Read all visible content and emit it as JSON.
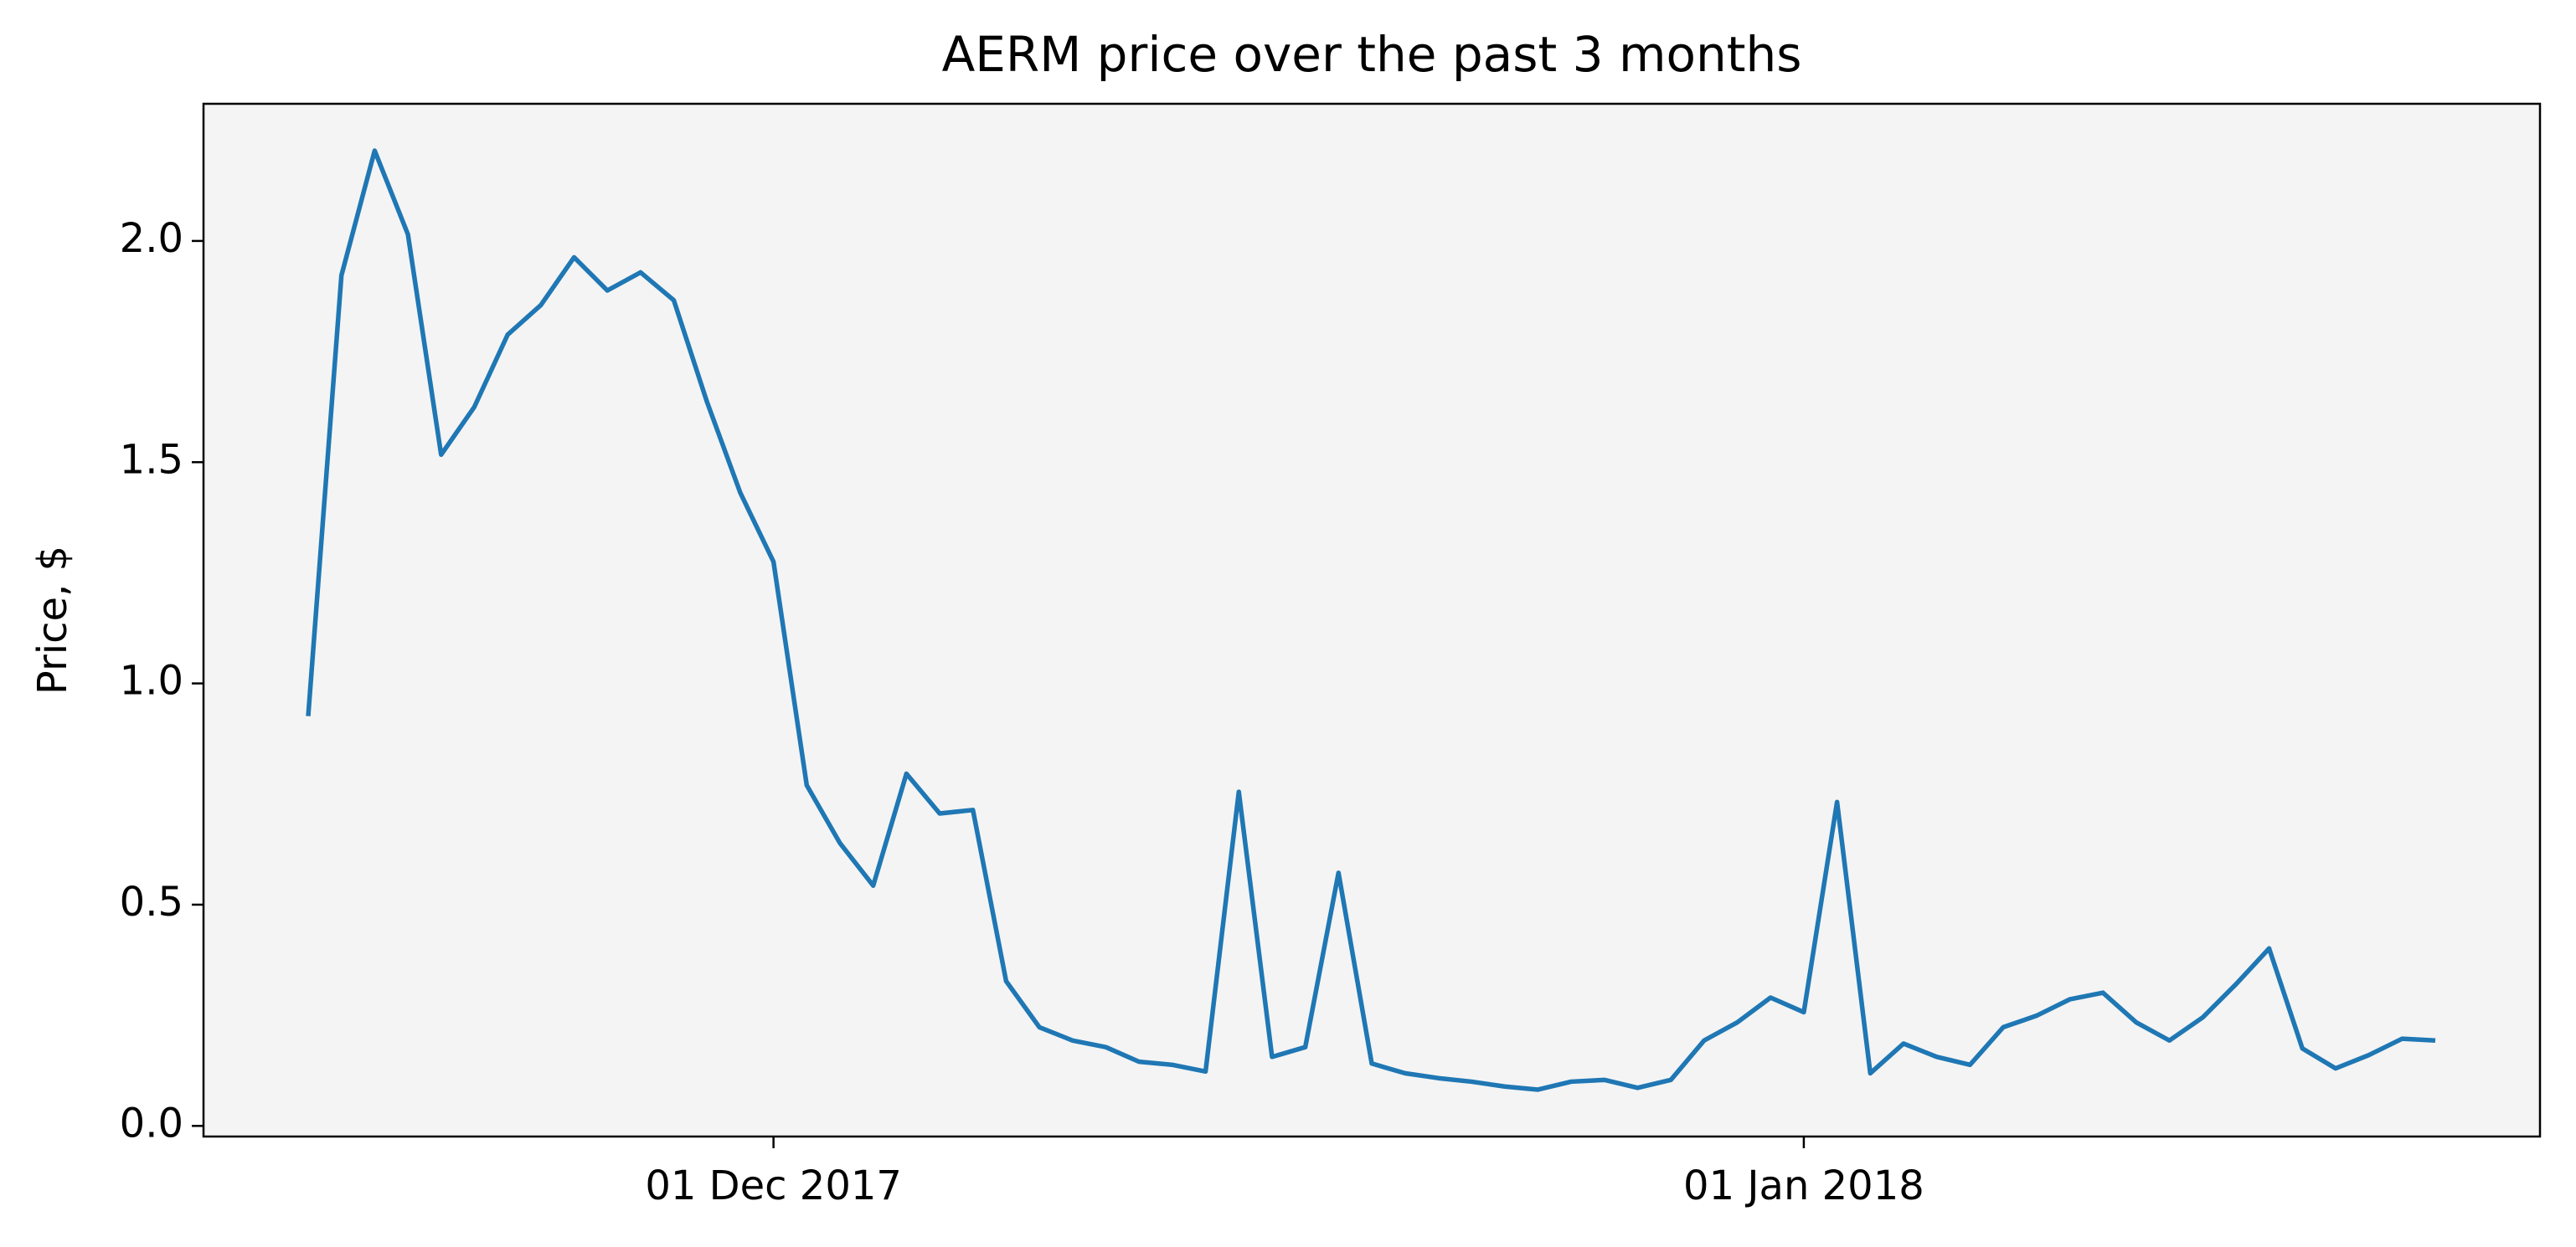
{
  "chart_data": {
    "type": "line",
    "title": "AERM price over the past 3 months",
    "y_label": "Price, $",
    "x": [
      "2017-11-17",
      "2017-11-18",
      "2017-11-19",
      "2017-11-20",
      "2017-11-21",
      "2017-11-22",
      "2017-11-23",
      "2017-11-24",
      "2017-11-25",
      "2017-11-26",
      "2017-11-27",
      "2017-11-28",
      "2017-11-29",
      "2017-11-30",
      "2017-12-01",
      "2017-12-02",
      "2017-12-03",
      "2017-12-04",
      "2017-12-05",
      "2017-12-06",
      "2017-12-07",
      "2017-12-08",
      "2017-12-09",
      "2017-12-10",
      "2017-12-11",
      "2017-12-12",
      "2017-12-13",
      "2017-12-14",
      "2017-12-15",
      "2017-12-16",
      "2017-12-17",
      "2017-12-18",
      "2017-12-19",
      "2017-12-20",
      "2017-12-21",
      "2017-12-22",
      "2017-12-23",
      "2017-12-24",
      "2017-12-25",
      "2017-12-26",
      "2017-12-27",
      "2017-12-28",
      "2017-12-29",
      "2017-12-30",
      "2017-12-31",
      "2018-01-01",
      "2018-01-02",
      "2018-01-03",
      "2018-01-04",
      "2018-01-05",
      "2018-01-06",
      "2018-01-07",
      "2018-01-08",
      "2018-01-09",
      "2018-01-10",
      "2018-01-11",
      "2018-01-12",
      "2018-01-13",
      "2018-01-14",
      "2018-01-15",
      "2018-01-16",
      "2018-01-17",
      "2018-01-18",
      "2018-01-19",
      "2018-01-20"
    ],
    "series": [
      {
        "color": "#1f77b4",
        "values": [
          0.926,
          1.922,
          2.204,
          2.015,
          1.517,
          1.625,
          1.788,
          1.855,
          1.963,
          1.888,
          1.929,
          1.866,
          1.636,
          1.431,
          1.275,
          0.77,
          0.639,
          0.543,
          0.796,
          0.706,
          0.714,
          0.327,
          0.223,
          0.193,
          0.178,
          0.145,
          0.138,
          0.123,
          0.755,
          0.156,
          0.178,
          0.572,
          0.141,
          0.119,
          0.108,
          0.1,
          0.089,
          0.082,
          0.1,
          0.104,
          0.086,
          0.104,
          0.193,
          0.234,
          0.29,
          0.257,
          0.732,
          0.119,
          0.186,
          0.156,
          0.138,
          0.223,
          0.249,
          0.286,
          0.301,
          0.234,
          0.193,
          0.245,
          0.32,
          0.401,
          0.175,
          0.13,
          0.16,
          0.197,
          0.193
        ]
      }
    ],
    "xlim": [
      "2017-11-13T20:24:00Z",
      "2018-01-23T03:36:00Z"
    ],
    "xticks": [
      {
        "value": "2017-12-01",
        "label": "01 Dec 2017"
      },
      {
        "value": "2018-01-01",
        "label": "01 Jan 2018"
      }
    ],
    "ylim": [
      -0.024,
      2.31
    ],
    "yticks": [
      {
        "value": 0,
        "label": "0.0"
      },
      0.5,
      {
        "value": 1,
        "label": "1.0"
      },
      1.5,
      {
        "value": 2,
        "label": "2.0"
      }
    ],
    "background": "#f4f4f4",
    "grid": false
  }
}
